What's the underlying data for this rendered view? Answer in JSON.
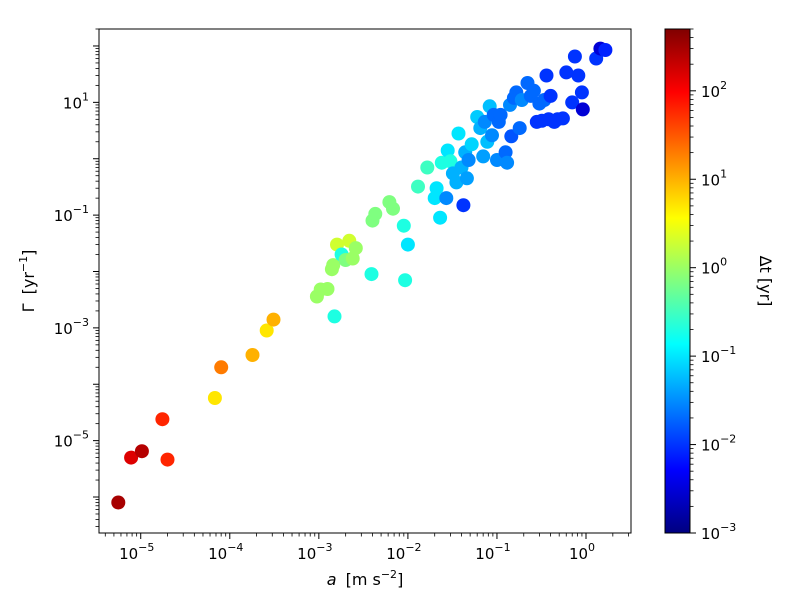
{
  "chart_data": {
    "type": "scatter",
    "title": "",
    "xlabel": {
      "symbol": "a",
      "unit": "[m s",
      "exp": "−2",
      "close": "]"
    },
    "ylabel": {
      "symbol": "Γ",
      "unit": "[yr",
      "exp": "−1",
      "close": "]"
    },
    "colorbar_label": "Δt [yr]",
    "x_scale": "log",
    "y_scale": "log",
    "color_scale": "log",
    "colormap": "jet",
    "xlim": [
      3.4e-06,
      3.2
    ],
    "ylim": [
      2.3e-07,
      200
    ],
    "clim": [
      0.001,
      500
    ],
    "x_ticks": [
      {
        "value": 1e-05,
        "base": "10",
        "exp": "−5"
      },
      {
        "value": 0.0001,
        "base": "10",
        "exp": "−4"
      },
      {
        "value": 0.001,
        "base": "10",
        "exp": "−3"
      },
      {
        "value": 0.01,
        "base": "10",
        "exp": "−2"
      },
      {
        "value": 0.1,
        "base": "10",
        "exp": "−1"
      },
      {
        "value": 1,
        "base": "10",
        "exp": "0"
      }
    ],
    "y_ticks": [
      {
        "value": 1e-05,
        "base": "10",
        "exp": "−5"
      },
      {
        "value": 0.001,
        "base": "10",
        "exp": "−3"
      },
      {
        "value": 0.1,
        "base": "10",
        "exp": "−1"
      },
      {
        "value": 10,
        "base": "10",
        "exp": "1"
      }
    ],
    "colorbar_ticks": [
      {
        "value": 0.001,
        "base": "10",
        "exp": "−3"
      },
      {
        "value": 0.01,
        "base": "10",
        "exp": "−2"
      },
      {
        "value": 0.1,
        "base": "10",
        "exp": "−1"
      },
      {
        "value": 1,
        "base": "10",
        "exp": "0"
      },
      {
        "value": 10,
        "base": "10",
        "exp": "1"
      },
      {
        "value": 100,
        "base": "10",
        "exp": "2"
      }
    ],
    "grid": false,
    "colormap_stops": [
      "#000080",
      "#0000ff",
      "#0080ff",
      "#00ffff",
      "#80ff80",
      "#ffff00",
      "#ff8000",
      "#ff0000",
      "#800000"
    ],
    "points": [
      {
        "x": 5.6e-06,
        "y": 8e-07,
        "c": 300
      },
      {
        "x": 7.8e-06,
        "y": 5e-06,
        "c": 150
      },
      {
        "x": 1.03e-05,
        "y": 6.5e-06,
        "c": 250
      },
      {
        "x": 1.75e-05,
        "y": 2.4e-05,
        "c": 60
      },
      {
        "x": 2e-05,
        "y": 4.6e-06,
        "c": 60
      },
      {
        "x": 6.8e-05,
        "y": 5.7e-05,
        "c": 5
      },
      {
        "x": 8e-05,
        "y": 0.0002,
        "c": 20
      },
      {
        "x": 0.00018,
        "y": 0.00033,
        "c": 10
      },
      {
        "x": 0.00026,
        "y": 0.0009,
        "c": 5
      },
      {
        "x": 0.00031,
        "y": 0.0014,
        "c": 10
      },
      {
        "x": 0.00095,
        "y": 0.0036,
        "c": 1.0
      },
      {
        "x": 0.00105,
        "y": 0.0048,
        "c": 1.0
      },
      {
        "x": 0.00125,
        "y": 0.0049,
        "c": 1.0
      },
      {
        "x": 0.0014,
        "y": 0.011,
        "c": 1.0
      },
      {
        "x": 0.00145,
        "y": 0.013,
        "c": 1.0
      },
      {
        "x": 0.0015,
        "y": 0.0016,
        "c": 0.2
      },
      {
        "x": 0.0016,
        "y": 0.03,
        "c": 2.0
      },
      {
        "x": 0.0018,
        "y": 0.02,
        "c": 0.2
      },
      {
        "x": 0.002,
        "y": 0.016,
        "c": 0.7
      },
      {
        "x": 0.0022,
        "y": 0.035,
        "c": 2.0
      },
      {
        "x": 0.0024,
        "y": 0.017,
        "c": 1.0
      },
      {
        "x": 0.0026,
        "y": 0.026,
        "c": 1.0
      },
      {
        "x": 0.0039,
        "y": 0.009,
        "c": 0.2
      },
      {
        "x": 0.004,
        "y": 0.08,
        "c": 0.7
      },
      {
        "x": 0.0043,
        "y": 0.105,
        "c": 0.7
      },
      {
        "x": 0.0062,
        "y": 0.17,
        "c": 0.7
      },
      {
        "x": 0.0068,
        "y": 0.13,
        "c": 0.7
      },
      {
        "x": 0.009,
        "y": 0.065,
        "c": 0.2
      },
      {
        "x": 0.0093,
        "y": 0.007,
        "c": 0.2
      },
      {
        "x": 0.01,
        "y": 0.03,
        "c": 0.1
      },
      {
        "x": 0.013,
        "y": 0.32,
        "c": 0.3
      },
      {
        "x": 0.0165,
        "y": 0.7,
        "c": 0.3
      },
      {
        "x": 0.02,
        "y": 0.2,
        "c": 0.1
      },
      {
        "x": 0.021,
        "y": 0.3,
        "c": 0.1
      },
      {
        "x": 0.023,
        "y": 0.09,
        "c": 0.1
      },
      {
        "x": 0.024,
        "y": 0.85,
        "c": 0.2
      },
      {
        "x": 0.027,
        "y": 0.2,
        "c": 0.03
      },
      {
        "x": 0.028,
        "y": 1.4,
        "c": 0.1
      },
      {
        "x": 0.03,
        "y": 0.9,
        "c": 0.2
      },
      {
        "x": 0.032,
        "y": 0.55,
        "c": 0.05
      },
      {
        "x": 0.035,
        "y": 0.38,
        "c": 0.05
      },
      {
        "x": 0.037,
        "y": 2.8,
        "c": 0.1
      },
      {
        "x": 0.04,
        "y": 0.7,
        "c": 0.05
      },
      {
        "x": 0.042,
        "y": 0.15,
        "c": 0.01
      },
      {
        "x": 0.044,
        "y": 1.3,
        "c": 0.05
      },
      {
        "x": 0.046,
        "y": 0.45,
        "c": 0.04
      },
      {
        "x": 0.048,
        "y": 0.95,
        "c": 0.03
      },
      {
        "x": 0.052,
        "y": 1.8,
        "c": 0.08
      },
      {
        "x": 0.06,
        "y": 5.5,
        "c": 0.07
      },
      {
        "x": 0.065,
        "y": 3.5,
        "c": 0.05
      },
      {
        "x": 0.07,
        "y": 1.1,
        "c": 0.04
      },
      {
        "x": 0.073,
        "y": 4.5,
        "c": 0.03
      },
      {
        "x": 0.078,
        "y": 2.0,
        "c": 0.06
      },
      {
        "x": 0.083,
        "y": 8.5,
        "c": 0.06
      },
      {
        "x": 0.088,
        "y": 2.6,
        "c": 0.03
      },
      {
        "x": 0.092,
        "y": 6.0,
        "c": 0.02
      },
      {
        "x": 0.1,
        "y": 0.95,
        "c": 0.03
      },
      {
        "x": 0.105,
        "y": 4.5,
        "c": 0.02
      },
      {
        "x": 0.11,
        "y": 6.0,
        "c": 0.02
      },
      {
        "x": 0.125,
        "y": 1.3,
        "c": 0.02
      },
      {
        "x": 0.13,
        "y": 0.85,
        "c": 0.03
      },
      {
        "x": 0.14,
        "y": 9.0,
        "c": 0.03
      },
      {
        "x": 0.145,
        "y": 2.5,
        "c": 0.015
      },
      {
        "x": 0.155,
        "y": 12,
        "c": 0.02
      },
      {
        "x": 0.165,
        "y": 15,
        "c": 0.02
      },
      {
        "x": 0.18,
        "y": 3.5,
        "c": 0.02
      },
      {
        "x": 0.19,
        "y": 11,
        "c": 0.03
      },
      {
        "x": 0.22,
        "y": 22,
        "c": 0.02
      },
      {
        "x": 0.24,
        "y": 13,
        "c": 0.02
      },
      {
        "x": 0.26,
        "y": 16,
        "c": 0.02
      },
      {
        "x": 0.28,
        "y": 4.5,
        "c": 0.01
      },
      {
        "x": 0.3,
        "y": 9.5,
        "c": 0.02
      },
      {
        "x": 0.32,
        "y": 4.7,
        "c": 0.01
      },
      {
        "x": 0.34,
        "y": 11,
        "c": 0.02
      },
      {
        "x": 0.36,
        "y": 30,
        "c": 0.01
      },
      {
        "x": 0.38,
        "y": 5.0,
        "c": 0.01
      },
      {
        "x": 0.4,
        "y": 13,
        "c": 0.01
      },
      {
        "x": 0.44,
        "y": 4.5,
        "c": 0.01
      },
      {
        "x": 0.48,
        "y": 5.0,
        "c": 0.01
      },
      {
        "x": 0.55,
        "y": 5.2,
        "c": 0.01
      },
      {
        "x": 0.6,
        "y": 34,
        "c": 0.01
      },
      {
        "x": 0.7,
        "y": 10,
        "c": 0.01
      },
      {
        "x": 0.75,
        "y": 65,
        "c": 0.01
      },
      {
        "x": 0.82,
        "y": 30,
        "c": 0.01
      },
      {
        "x": 0.9,
        "y": 15,
        "c": 0.01
      },
      {
        "x": 0.92,
        "y": 7.5,
        "c": 0.003
      },
      {
        "x": 1.3,
        "y": 60,
        "c": 0.01
      },
      {
        "x": 1.45,
        "y": 90,
        "c": 0.003
      },
      {
        "x": 1.65,
        "y": 85,
        "c": 0.008
      }
    ]
  }
}
